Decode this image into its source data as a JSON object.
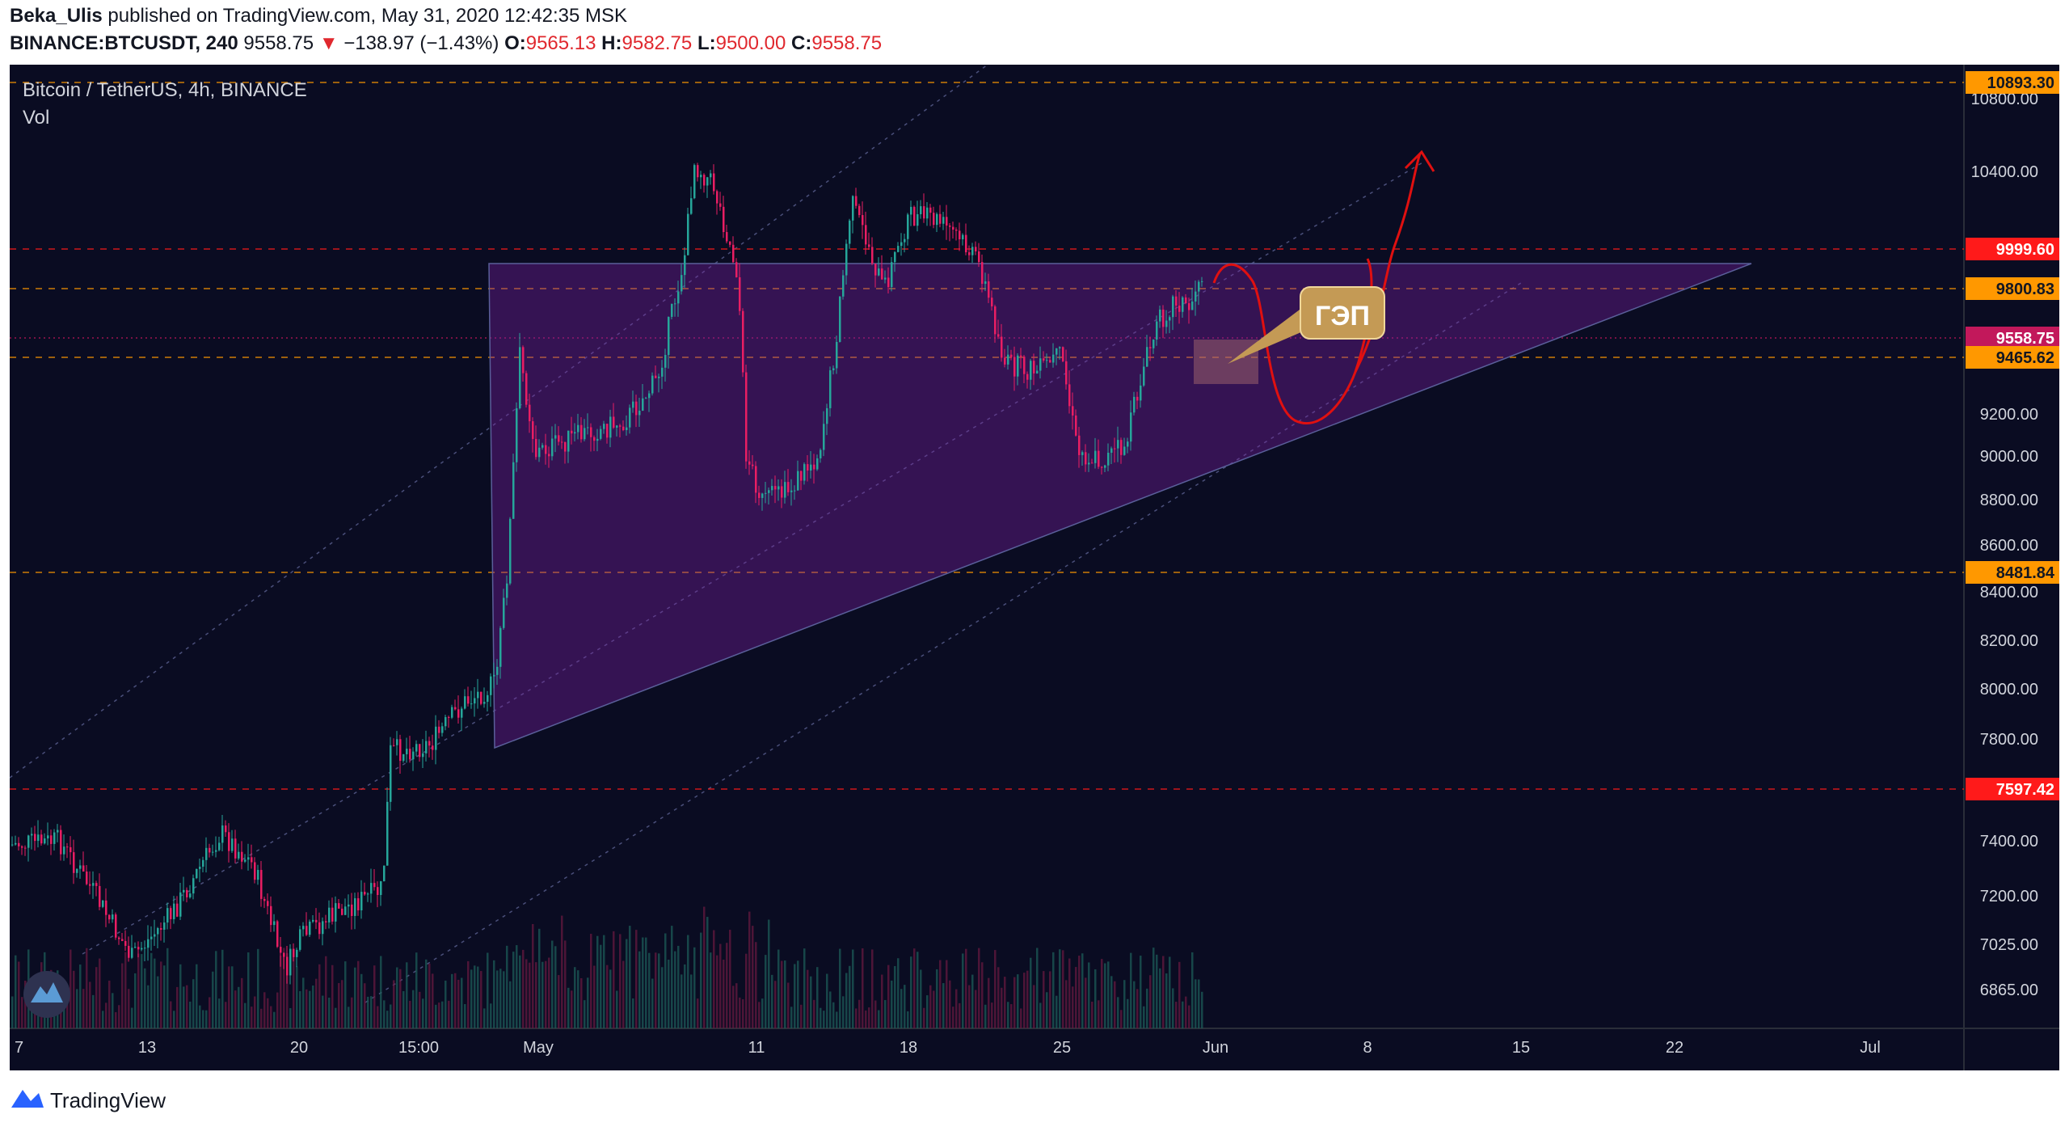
{
  "header": {
    "author": "Beka_Ulis",
    "published": "published on TradingView.com, May 31, 2020 12:42:35 MSK",
    "symbol": "BINANCE:BTCUSDT, 240",
    "last": "9558.75",
    "change_arrow": "▼",
    "change": "−138.97 (−1.43%)",
    "open_label": "O:",
    "open": "9565.13",
    "high_label": "H:",
    "high": "9582.75",
    "low_label": "L:",
    "low": "9500.00",
    "close_label": "C:",
    "close": "9558.75"
  },
  "legend": {
    "title": "Bitcoin / TetherUS, 4h, BINANCE",
    "indicator": "Vol"
  },
  "footer": {
    "brand": "TradingView",
    "logo_icon": "tradingview-logo-icon"
  },
  "colors": {
    "background": "#0a0c22",
    "up": "#26a69a",
    "down": "#e91e63",
    "triangle": "#7b1fa2",
    "orange_badge": "#ff9800",
    "red_badge": "#ff1a1a",
    "drawing_red": "#e01010",
    "callout": "#c49a55"
  },
  "chart_data": {
    "type": "candlestick",
    "y_ticks": [
      "10800.00",
      "10400.00",
      "9200.00",
      "9000.00",
      "8800.00",
      "8600.00",
      "8400.00",
      "8200.00",
      "8000.00",
      "7800.00",
      "7400.00",
      "7200.00",
      "7025.00",
      "6865.00"
    ],
    "x_ticks": [
      "7",
      "13",
      "20",
      "15:00",
      "May",
      "11",
      "18",
      "25",
      "Jun",
      "8",
      "15",
      "22",
      "Jul"
    ],
    "price_levels": [
      {
        "value": "10893.30",
        "color": "orange"
      },
      {
        "value": "9999.60",
        "color": "red"
      },
      {
        "value": "9800.83",
        "color": "orange"
      },
      {
        "value": "9558.75",
        "color": "magenta"
      },
      {
        "value": "9465.62",
        "color": "orange"
      },
      {
        "value": "8481.84",
        "color": "orange"
      },
      {
        "value": "7597.42",
        "color": "red"
      }
    ],
    "callout": "ГЭП"
  }
}
